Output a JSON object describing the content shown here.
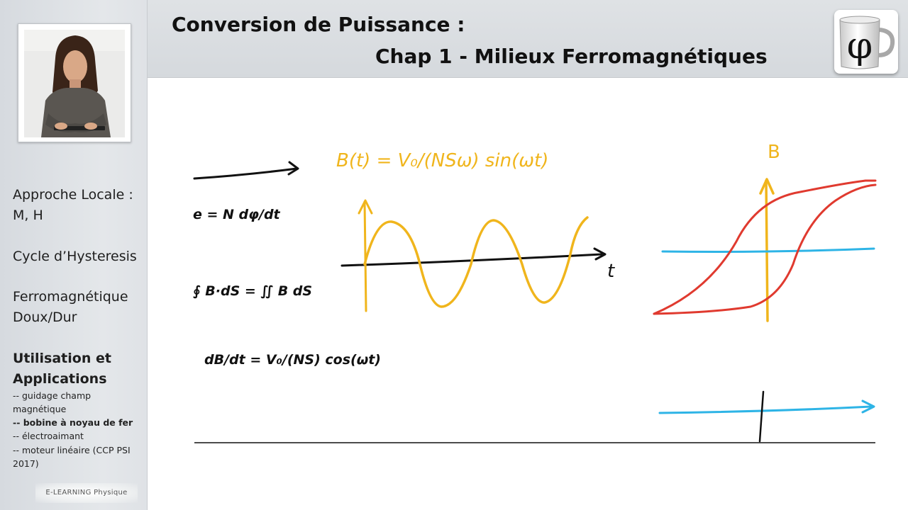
{
  "header": {
    "title_line1": "Conversion de Puissance :",
    "title_line2": "Chap 1 - Milieux Ferromagnétiques"
  },
  "logo": {
    "symbol": "φ"
  },
  "sidebar": {
    "topics": [
      {
        "label_line1": "Approche Locale :",
        "label_line2": "M, H"
      },
      {
        "label_line1": "Cycle d’Hysteresis"
      },
      {
        "label_line1": "Ferromagnétique",
        "label_line2": "Doux/Dur"
      },
      {
        "label_line1": "Utilisation et",
        "label_line2": "Applications"
      }
    ],
    "subitems": [
      {
        "label_line1": "-- guidage champ",
        "label_line2": "magnétique"
      },
      {
        "label_line1": "-- bobine à noyau de fer"
      },
      {
        "label_line1": "-- électroaimant"
      },
      {
        "label_line1": "-- moteur linéaire (CCP PSI",
        "label_line2": "2017)"
      }
    ],
    "footer_logo": "E-LEARNING Physique"
  },
  "board": {
    "formula_b": "B(t) = V₀/(NSω) sin(ωt)",
    "formula_e": "e = N dφ/dt",
    "formula_flux": "∮ B·dS = ∬ B dS",
    "formula_db": "dB/dt = V₀/(NS) cos(ωt)",
    "label_t": "t",
    "label_B": "B"
  },
  "colors": {
    "yellow": "#f0b51c",
    "red": "#e03a2f",
    "cyan": "#2eb4e6",
    "ink": "#111111"
  }
}
